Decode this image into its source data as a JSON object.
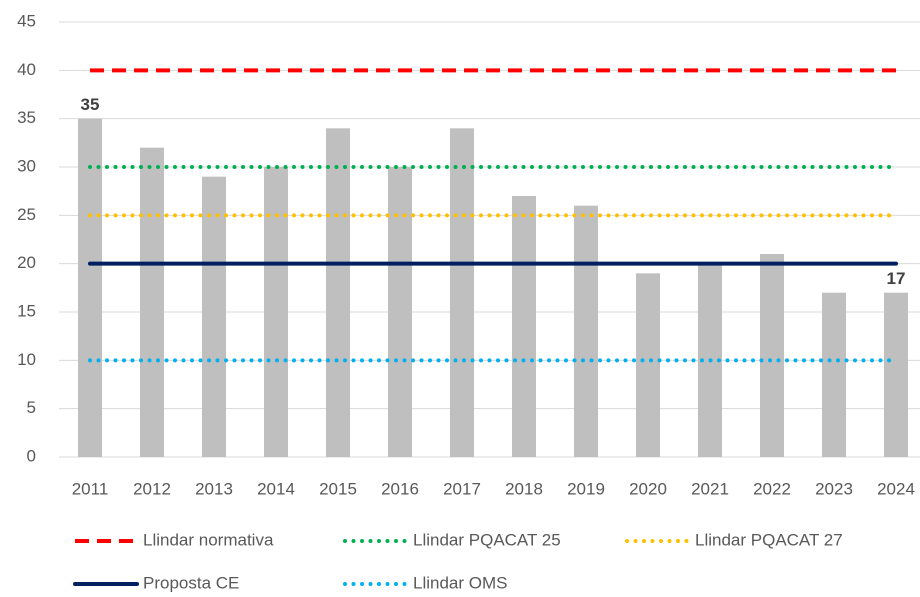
{
  "chart_data": {
    "type": "bar",
    "categories": [
      "2011",
      "2012",
      "2013",
      "2014",
      "2015",
      "2016",
      "2017",
      "2018",
      "2019",
      "2020",
      "2021",
      "2022",
      "2023",
      "2024"
    ],
    "values": [
      35,
      32,
      29,
      30,
      34,
      30,
      34,
      27,
      26,
      19,
      20,
      21,
      17,
      17
    ],
    "value_labels": [
      "35",
      null,
      null,
      null,
      null,
      null,
      null,
      null,
      null,
      null,
      null,
      null,
      null,
      "17"
    ],
    "color": "#bfbfbf",
    "series": [
      {
        "name": "Llindar normativa",
        "color": "#ff0000",
        "style": "dashed",
        "values": [
          40,
          40,
          40,
          40,
          40,
          40,
          40,
          40,
          40,
          40,
          40,
          40,
          40,
          40
        ]
      },
      {
        "name": "Llindar PQACAT 25",
        "color": "#00b050",
        "style": "dotted",
        "values": [
          30,
          30,
          30,
          30,
          30,
          30,
          30,
          30,
          30,
          30,
          30,
          30,
          30,
          30
        ]
      },
      {
        "name": "Llindar PQACAT 27",
        "color": "#ffc000",
        "style": "dotted",
        "values": [
          25,
          25,
          25,
          25,
          25,
          25,
          25,
          25,
          25,
          25,
          25,
          25,
          25,
          25
        ]
      },
      {
        "name": "Proposta CE",
        "color": "#002060",
        "style": "solid",
        "values": [
          20,
          20,
          20,
          20,
          20,
          20,
          20,
          20,
          20,
          20,
          20,
          20,
          20,
          20
        ]
      },
      {
        "name": "Llindar OMS",
        "color": "#00b0f0",
        "style": "dotted",
        "values": [
          10,
          10,
          10,
          10,
          10,
          10,
          10,
          10,
          10,
          10,
          10,
          10,
          10,
          10
        ]
      }
    ],
    "ylim": [
      0,
      45
    ],
    "yticks": [
      0,
      5,
      10,
      15,
      20,
      25,
      30,
      35,
      40,
      45
    ],
    "grid": true,
    "legend": "bottom"
  }
}
